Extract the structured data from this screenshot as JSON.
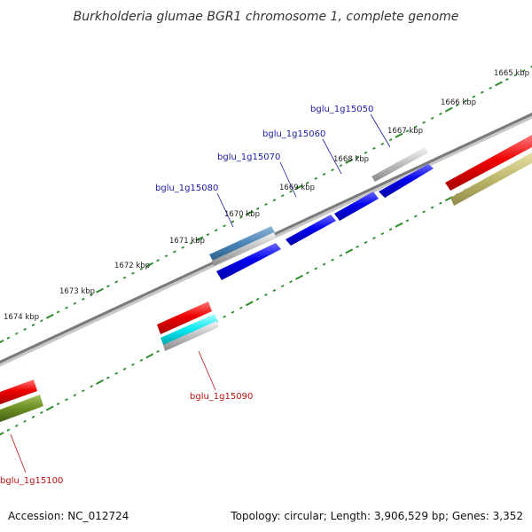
{
  "title": "Burkholderia glumae BGR1 chromosome 1, complete genome",
  "footer": {
    "accession": "Accession: NC_012724",
    "summary": "Topology: circular; Length: 3,906,529 bp; Genes: 3,352"
  },
  "colors": {
    "outer_ticks": "#2e8b2e",
    "inner_ticks": "#2e8b2e",
    "backbone": "#7a7a7a",
    "forward_label": "#1a1aa8",
    "reverse_label": "#c01010"
  },
  "ticks": [
    {
      "label": "1665 kbp"
    },
    {
      "label": "1666 kbp"
    },
    {
      "label": "1667 kbp"
    },
    {
      "label": "1668 kbp"
    },
    {
      "label": "1669 kbp"
    },
    {
      "label": "1670 kbp"
    },
    {
      "label": "1671 kbp"
    },
    {
      "label": "1672 kbp"
    },
    {
      "label": "1673 kbp"
    },
    {
      "label": "1674 kbp"
    }
  ],
  "genes": [
    {
      "label": "bglu_1g15050",
      "strand": "forward"
    },
    {
      "label": "bglu_1g15060",
      "strand": "forward"
    },
    {
      "label": "bglu_1g15070",
      "strand": "forward"
    },
    {
      "label": "bglu_1g15080",
      "strand": "forward"
    },
    {
      "label": "bglu_1g15090",
      "strand": "reverse"
    },
    {
      "label": "bglu_1g15100",
      "strand": "reverse"
    }
  ]
}
